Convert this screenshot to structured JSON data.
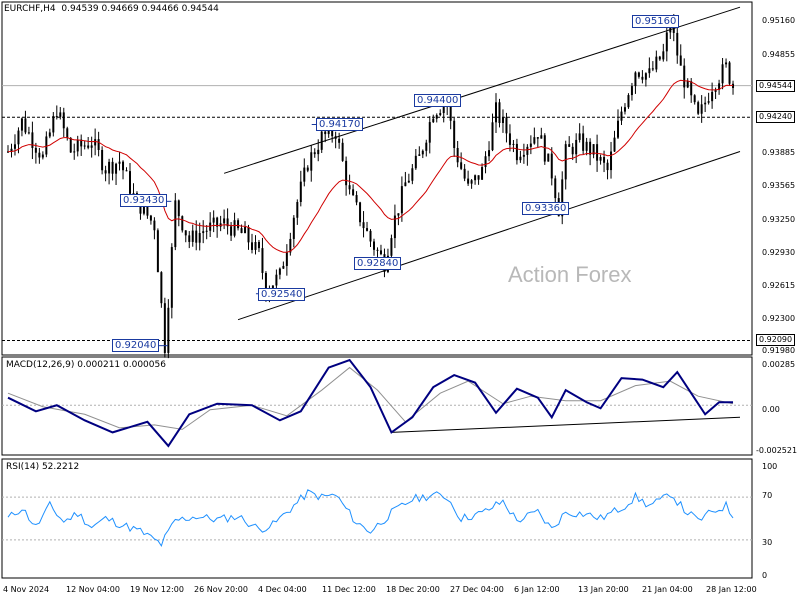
{
  "header": {
    "symbol": "EURCHF,H4",
    "ohlc": "0.94539 0.94669 0.94466 0.94544"
  },
  "watermark": "Action Forex",
  "colors": {
    "candles": "#000000",
    "ma": "#d00000",
    "channel": "#000000",
    "macd": "#000080",
    "signal": "#909090",
    "rsi": "#1e90ff",
    "label_border": "#1a3aa0"
  },
  "chart_data": [
    {
      "type": "candlestick",
      "title": "EURCHF,H4",
      "ylim": [
        0.9195,
        0.9535
      ],
      "y_ticks": [
        "0.95160",
        "0.94855",
        "0.94240",
        "0.93885",
        "0.93565",
        "0.93250",
        "0.92930",
        "0.92615",
        "0.92300",
        "0.91980"
      ],
      "current_price": "0.94544",
      "levels": [
        {
          "label": "0.94544",
          "value": 0.94544,
          "style": "solid-gray"
        },
        {
          "label": "0.94240",
          "value": 0.9424,
          "style": "dashed"
        },
        {
          "label": "0.92090",
          "value": 0.9209,
          "style": "dashed"
        }
      ],
      "annotations": [
        "0.95160",
        "0.94400",
        "0.94170",
        "0.93430",
        "0.93360",
        "0.92840",
        "0.92540",
        "0.92040"
      ],
      "price_path": [
        [
          0,
          0.9391
        ],
        [
          4,
          0.942
        ],
        [
          10,
          0.9385
        ],
        [
          14,
          0.9432
        ],
        [
          18,
          0.9391
        ],
        [
          24,
          0.9401
        ],
        [
          28,
          0.9375
        ],
        [
          32,
          0.9382
        ],
        [
          36,
          0.9348
        ],
        [
          42,
          0.932
        ],
        [
          45,
          0.9204
        ],
        [
          48,
          0.934
        ],
        [
          52,
          0.9305
        ],
        [
          56,
          0.9315
        ],
        [
          62,
          0.9322
        ],
        [
          68,
          0.931
        ],
        [
          72,
          0.9292
        ],
        [
          74,
          0.9259
        ],
        [
          78,
          0.9271
        ],
        [
          82,
          0.933
        ],
        [
          86,
          0.938
        ],
        [
          90,
          0.9405
        ],
        [
          94,
          0.941
        ],
        [
          98,
          0.935
        ],
        [
          104,
          0.9305
        ],
        [
          108,
          0.9284
        ],
        [
          110,
          0.9315
        ],
        [
          114,
          0.936
        ],
        [
          118,
          0.9385
        ],
        [
          122,
          0.943
        ],
        [
          126,
          0.944
        ],
        [
          128,
          0.9395
        ],
        [
          132,
          0.9355
        ],
        [
          136,
          0.9372
        ],
        [
          140,
          0.943
        ],
        [
          146,
          0.939
        ],
        [
          152,
          0.941
        ],
        [
          156,
          0.937
        ],
        [
          158,
          0.9336
        ],
        [
          160,
          0.939
        ],
        [
          164,
          0.94
        ],
        [
          168,
          0.939
        ],
        [
          172,
          0.9372
        ],
        [
          176,
          0.943
        ],
        [
          180,
          0.947
        ],
        [
          184,
          0.9465
        ],
        [
          188,
          0.9485
        ],
        [
          190,
          0.9516
        ],
        [
          193,
          0.947
        ],
        [
          196,
          0.944
        ],
        [
          198,
          0.9422
        ],
        [
          202,
          0.9455
        ],
        [
          206,
          0.9472
        ],
        [
          208,
          0.9454
        ]
      ],
      "xlim": [
        0,
        210
      ],
      "x_ticks": [
        "4 Nov 2024",
        "12 Nov 04:00",
        "19 Nov 12:00",
        "26 Nov 20:00",
        "4 Dec 04:00",
        "11 Dec 12:00",
        "18 Dec 20:00",
        "27 Dec 04:00",
        "6 Jan 12:00",
        "13 Jan 20:00",
        "21 Jan 04:00",
        "28 Jan 12:00"
      ]
    },
    {
      "type": "line",
      "title": "MACD(12,26,9) 0.000211 0.000056",
      "ylim": [
        -0.0033,
        0.0032
      ],
      "y_ticks": [
        "0.00285",
        "0.00",
        "-0.002521"
      ],
      "series": [
        {
          "name": "MACD",
          "values": [
            [
              0,
              0.0005
            ],
            [
              8,
              -0.0004
            ],
            [
              14,
              0.0
            ],
            [
              22,
              -0.001
            ],
            [
              30,
              -0.0018
            ],
            [
              40,
              -0.0011
            ],
            [
              46,
              -0.0027
            ],
            [
              52,
              -0.0006
            ],
            [
              60,
              0.0001
            ],
            [
              70,
              0.0
            ],
            [
              78,
              -0.001
            ],
            [
              84,
              -0.0004
            ],
            [
              92,
              0.0025
            ],
            [
              98,
              0.003
            ],
            [
              104,
              0.0012
            ],
            [
              110,
              -0.0018
            ],
            [
              116,
              -0.0008
            ],
            [
              122,
              0.0012
            ],
            [
              128,
              0.002
            ],
            [
              134,
              0.0015
            ],
            [
              140,
              -0.0005
            ],
            [
              146,
              0.0011
            ],
            [
              152,
              0.0005
            ],
            [
              156,
              -0.0008
            ],
            [
              160,
              0.001
            ],
            [
              166,
              0.0002
            ],
            [
              170,
              -0.0002
            ],
            [
              176,
              0.0018
            ],
            [
              182,
              0.0017
            ],
            [
              188,
              0.0012
            ],
            [
              192,
              0.0022
            ],
            [
              196,
              0.0008
            ],
            [
              200,
              -0.0006
            ],
            [
              204,
              0.0002
            ],
            [
              208,
              0.0002
            ]
          ]
        },
        {
          "name": "Signal",
          "values": [
            [
              0,
              0.0008
            ],
            [
              10,
              -0.0001
            ],
            [
              22,
              -0.0006
            ],
            [
              32,
              -0.0015
            ],
            [
              42,
              -0.0013
            ],
            [
              50,
              -0.0016
            ],
            [
              58,
              -0.0003
            ],
            [
              70,
              0.0
            ],
            [
              80,
              -0.0007
            ],
            [
              90,
              0.001
            ],
            [
              98,
              0.0025
            ],
            [
              106,
              0.001
            ],
            [
              114,
              -0.0011
            ],
            [
              124,
              0.0008
            ],
            [
              132,
              0.0016
            ],
            [
              142,
              0.0001
            ],
            [
              150,
              0.0006
            ],
            [
              160,
              0.0003
            ],
            [
              170,
              0.0003
            ],
            [
              180,
              0.0013
            ],
            [
              190,
              0.0016
            ],
            [
              198,
              0.0006
            ],
            [
              208,
              0.0001
            ]
          ]
        }
      ]
    },
    {
      "type": "line",
      "title": "RSI(14) 52.2212",
      "ylim": [
        0,
        100
      ],
      "y_ticks": [
        "100",
        "70",
        "30",
        "0"
      ],
      "series": [
        {
          "name": "RSI",
          "values": [
            [
              0,
              50
            ],
            [
              4,
              60
            ],
            [
              8,
              42
            ],
            [
              12,
              62
            ],
            [
              16,
              47
            ],
            [
              20,
              55
            ],
            [
              24,
              42
            ],
            [
              28,
              50
            ],
            [
              32,
              45
            ],
            [
              38,
              38
            ],
            [
              44,
              26
            ],
            [
              48,
              48
            ],
            [
              54,
              52
            ],
            [
              60,
              49
            ],
            [
              66,
              52
            ],
            [
              72,
              40
            ],
            [
              76,
              44
            ],
            [
              82,
              62
            ],
            [
              86,
              74
            ],
            [
              90,
              70
            ],
            [
              94,
              72
            ],
            [
              100,
              46
            ],
            [
              104,
              38
            ],
            [
              110,
              55
            ],
            [
              116,
              68
            ],
            [
              122,
              72
            ],
            [
              126,
              70
            ],
            [
              130,
              50
            ],
            [
              136,
              55
            ],
            [
              142,
              66
            ],
            [
              146,
              48
            ],
            [
              152,
              56
            ],
            [
              156,
              40
            ],
            [
              160,
              56
            ],
            [
              166,
              54
            ],
            [
              170,
              50
            ],
            [
              176,
              60
            ],
            [
              180,
              70
            ],
            [
              184,
              62
            ],
            [
              188,
              68
            ],
            [
              190,
              74
            ],
            [
              194,
              58
            ],
            [
              198,
              48
            ],
            [
              202,
              56
            ],
            [
              206,
              62
            ],
            [
              208,
              52
            ]
          ]
        }
      ]
    }
  ]
}
